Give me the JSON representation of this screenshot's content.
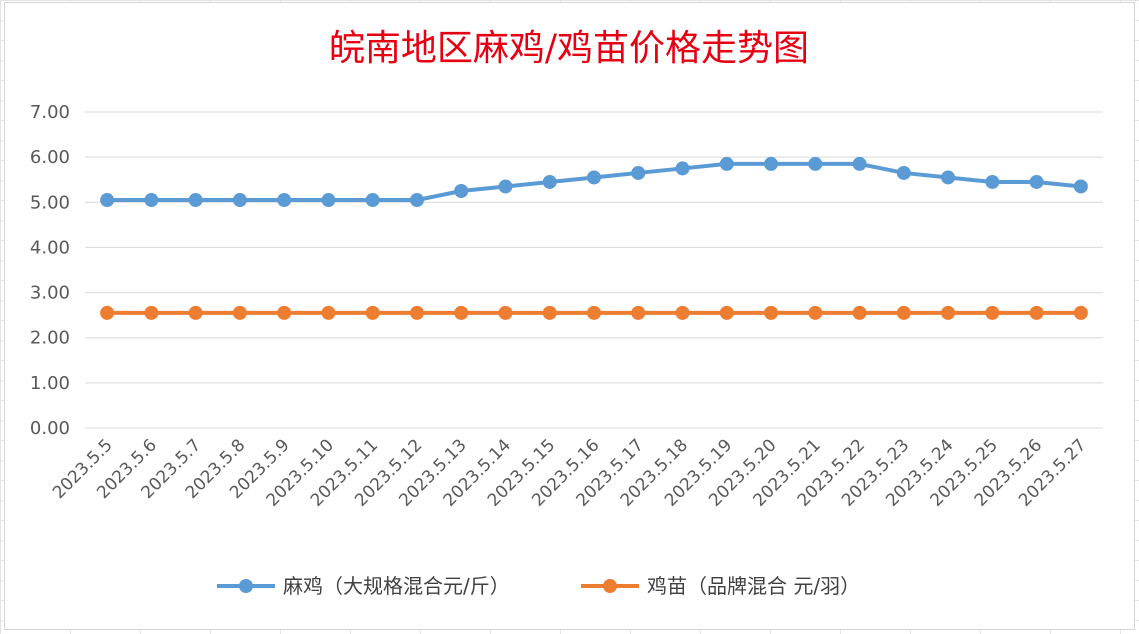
{
  "chart_data": {
    "type": "line",
    "title": "皖南地区麻鸡/鸡苗价格走势图",
    "categories": [
      "2023.5.5",
      "2023.5.6",
      "2023.5.7",
      "2023.5.8",
      "2023.5.9",
      "2023.5.10",
      "2023.5.11",
      "2023.5.12",
      "2023.5.13",
      "2023.5.14",
      "2023.5.15",
      "2023.5.16",
      "2023.5.17",
      "2023.5.18",
      "2023.5.19",
      "2023.5.20",
      "2023.5.21",
      "2023.5.22",
      "2023.5.23",
      "2023.5.24",
      "2023.5.25",
      "2023.5.26",
      "2023.5.27"
    ],
    "series": [
      {
        "name": "麻鸡（大规格混合元/斤）",
        "color": "#5b9bd5",
        "values": [
          5.05,
          5.05,
          5.05,
          5.05,
          5.05,
          5.05,
          5.05,
          5.05,
          5.25,
          5.35,
          5.45,
          5.55,
          5.65,
          5.75,
          5.85,
          5.85,
          5.85,
          5.85,
          5.65,
          5.55,
          5.45,
          5.45,
          5.35
        ]
      },
      {
        "name": "鸡苗（品牌混合 元/羽）",
        "color": "#ed7d31",
        "values": [
          2.55,
          2.55,
          2.55,
          2.55,
          2.55,
          2.55,
          2.55,
          2.55,
          2.55,
          2.55,
          2.55,
          2.55,
          2.55,
          2.55,
          2.55,
          2.55,
          2.55,
          2.55,
          2.55,
          2.55,
          2.55,
          2.55,
          2.55
        ]
      }
    ],
    "yticks": [
      "0.00",
      "1.00",
      "2.00",
      "3.00",
      "4.00",
      "5.00",
      "6.00",
      "7.00"
    ],
    "ylim": [
      0,
      7
    ],
    "grid": true,
    "legend": "bottom",
    "xlabel": "",
    "ylabel": ""
  }
}
